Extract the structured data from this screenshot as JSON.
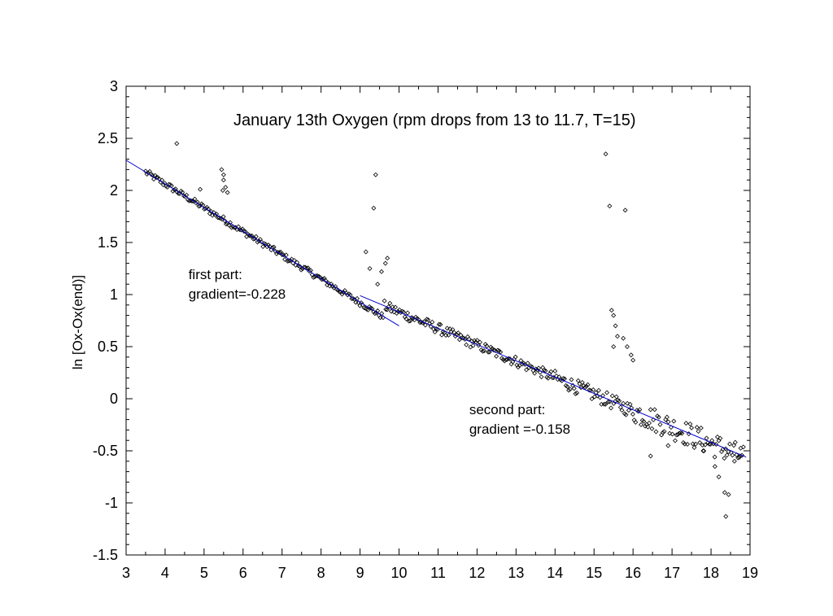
{
  "chart_data": {
    "type": "scatter",
    "title": "January 13th Oxygen (rpm drops from 13 to 11.7, T=15)",
    "xlabel": "",
    "ylabel": "ln [Ox-Ox(end)]",
    "xlim": [
      3,
      19
    ],
    "ylim": [
      -1.5,
      3
    ],
    "xticks": [
      3,
      4,
      5,
      6,
      7,
      8,
      9,
      10,
      11,
      12,
      13,
      14,
      15,
      16,
      17,
      18,
      19
    ],
    "yticks": [
      -1.5,
      -1,
      -0.5,
      0,
      0.5,
      1,
      1.5,
      2,
      2.5,
      3
    ],
    "ytick_labels": [
      "-1.5",
      "-1",
      "-0.5",
      "0",
      "0.5",
      "1",
      "1.5",
      "2",
      "2.5",
      "3"
    ],
    "grid": false,
    "colors": {
      "points": "#000000",
      "fit_lines": "#0000cc"
    },
    "fit_lines": [
      {
        "x": [
          3,
          10
        ],
        "y": [
          2.29,
          0.7
        ]
      },
      {
        "x": [
          9,
          18.9
        ],
        "y": [
          0.99,
          -0.56
        ]
      }
    ],
    "annotations": [
      {
        "lines": [
          "first part:",
          "gradient=-0.228"
        ],
        "x": 4.6,
        "y": 1.15
      },
      {
        "lines": [
          "second part:",
          "gradient =-0.158"
        ],
        "x": 11.8,
        "y": -0.15
      }
    ],
    "outliers": [
      [
        4.3,
        2.45
      ],
      [
        4.9,
        2.01
      ],
      [
        5.45,
        2.2
      ],
      [
        5.5,
        2.15
      ],
      [
        5.5,
        2.1
      ],
      [
        5.55,
        2.03
      ],
      [
        5.6,
        1.98
      ],
      [
        5.48,
        2.0
      ],
      [
        9.15,
        1.41
      ],
      [
        9.25,
        1.25
      ],
      [
        9.35,
        1.83
      ],
      [
        9.4,
        2.15
      ],
      [
        9.45,
        1.1
      ],
      [
        9.55,
        1.22
      ],
      [
        9.65,
        1.3
      ],
      [
        9.7,
        1.35
      ],
      [
        15.3,
        2.35
      ],
      [
        15.4,
        1.85
      ],
      [
        15.5,
        0.8
      ],
      [
        15.55,
        0.7
      ],
      [
        15.45,
        0.85
      ],
      [
        15.6,
        0.6
      ],
      [
        15.8,
        1.81
      ],
      [
        15.75,
        0.58
      ],
      [
        15.85,
        0.5
      ],
      [
        15.95,
        0.42
      ],
      [
        16.0,
        0.37
      ],
      [
        15.5,
        0.5
      ],
      [
        16.45,
        -0.55
      ],
      [
        16.9,
        -0.45
      ],
      [
        17.8,
        -0.5
      ],
      [
        18.1,
        -0.65
      ],
      [
        18.2,
        -0.75
      ],
      [
        18.35,
        -0.9
      ],
      [
        18.45,
        -0.92
      ],
      [
        18.38,
        -1.13
      ],
      [
        18.6,
        -0.6
      ],
      [
        18.75,
        -0.55
      ]
    ]
  }
}
